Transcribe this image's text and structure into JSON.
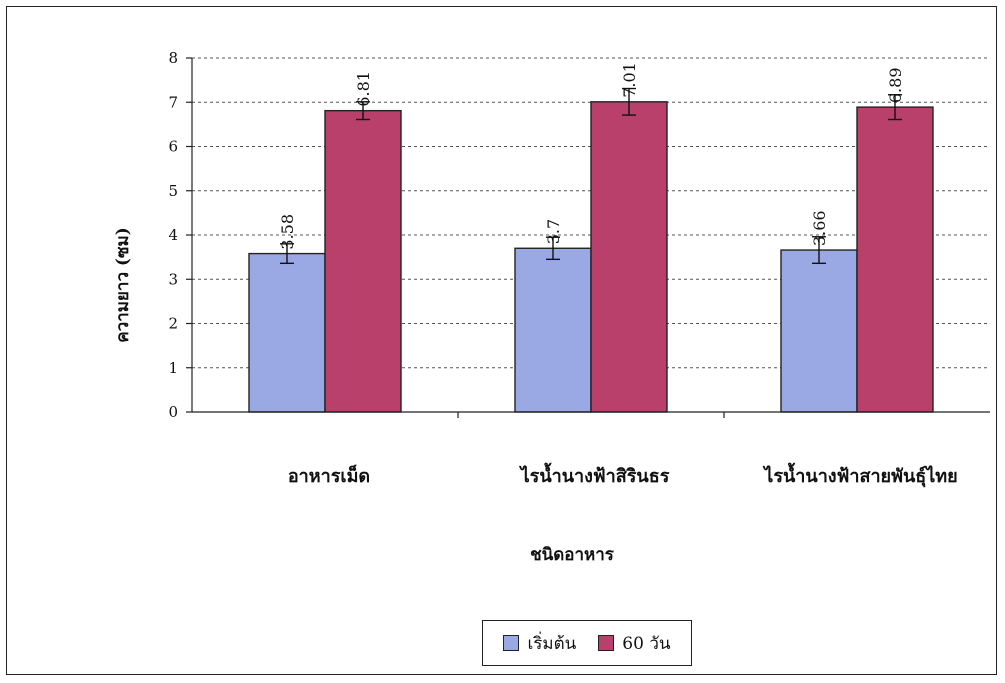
{
  "chart_data": {
    "type": "bar",
    "xlabel": "ชนิดอาหาร",
    "ylabel": "ความยาว (ซม)",
    "ylim": [
      0,
      8
    ],
    "yticks": [
      0,
      1,
      2,
      3,
      4,
      5,
      6,
      7,
      8
    ],
    "categories": [
      "อาหารเม็ด",
      "ไรน้ำนางฟ้าสิรินธร",
      "ไรน้ำนางฟ้าสายพันธุ์ไทย"
    ],
    "series": [
      {
        "name": "เริ่มต้น",
        "values": [
          3.58,
          3.7,
          3.66
        ],
        "labels": [
          "3.58",
          "3.7",
          "3.66"
        ],
        "error": [
          0.22,
          0.25,
          0.3
        ],
        "color": "#9aa9e4"
      },
      {
        "name": "60 วัน",
        "values": [
          6.81,
          7.01,
          6.89
        ],
        "labels": [
          "6.81",
          "7.01",
          "6.89"
        ],
        "error": [
          0.2,
          0.3,
          0.28
        ],
        "color": "#b8406a"
      }
    ],
    "grid": true,
    "legend_position": "bottom"
  }
}
